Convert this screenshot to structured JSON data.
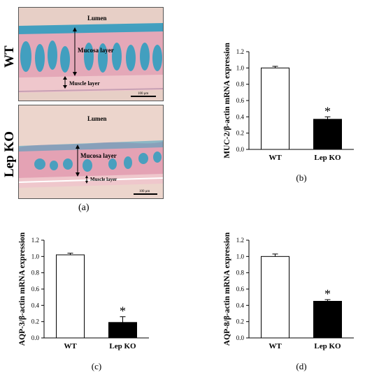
{
  "panel_a": {
    "caption": "(a)",
    "top": {
      "genotype": "WT",
      "lumen_label": "Lumen",
      "mucosa_label": "Mucosa layer",
      "muscle_label": "Muscle layer",
      "scale_label": "100 μm"
    },
    "bottom": {
      "genotype": "Lep KO",
      "lumen_label": "Lumen",
      "mucosa_label": "Mucosa layer",
      "muscle_label": "Muscle layer",
      "scale_label": "100 μm"
    }
  },
  "chart_data": [
    {
      "panel": "(b)",
      "type": "bar",
      "categories": [
        "WT",
        "Lep KO"
      ],
      "values": [
        1.0,
        0.37
      ],
      "errors": [
        0.02,
        0.03
      ],
      "colors": [
        "#ffffff",
        "#000000"
      ],
      "significance": [
        "",
        "*"
      ],
      "ylabel": "MUC-2/β-actin mRNA expression",
      "ylim": [
        0,
        1.2
      ],
      "yticks": [
        "0.0",
        "0.2",
        "0.4",
        "0.6",
        "0.8",
        "1.0",
        "1.2"
      ],
      "grid": false
    },
    {
      "panel": "(c)",
      "type": "bar",
      "categories": [
        "WT",
        "Lep KO"
      ],
      "values": [
        1.02,
        0.19
      ],
      "errors": [
        0.02,
        0.07
      ],
      "colors": [
        "#ffffff",
        "#000000"
      ],
      "significance": [
        "",
        "*"
      ],
      "ylabel": "AQP-3/β-actin mRNA expression",
      "ylim": [
        0,
        1.2
      ],
      "yticks": [
        "0.0",
        "0.2",
        "0.4",
        "0.6",
        "0.8",
        "1.0",
        "1.2"
      ],
      "grid": false
    },
    {
      "panel": "(d)",
      "type": "bar",
      "categories": [
        "WT",
        "Lep KO"
      ],
      "values": [
        1.0,
        0.45
      ],
      "errors": [
        0.03,
        0.02
      ],
      "colors": [
        "#ffffff",
        "#000000"
      ],
      "significance": [
        "",
        "*"
      ],
      "ylabel": "AQP-8/β-actin mRNA expression",
      "ylim": [
        0,
        1.2
      ],
      "yticks": [
        "0.0",
        "0.2",
        "0.4",
        "0.6",
        "0.8",
        "1.0",
        "1.2"
      ],
      "grid": false
    }
  ]
}
